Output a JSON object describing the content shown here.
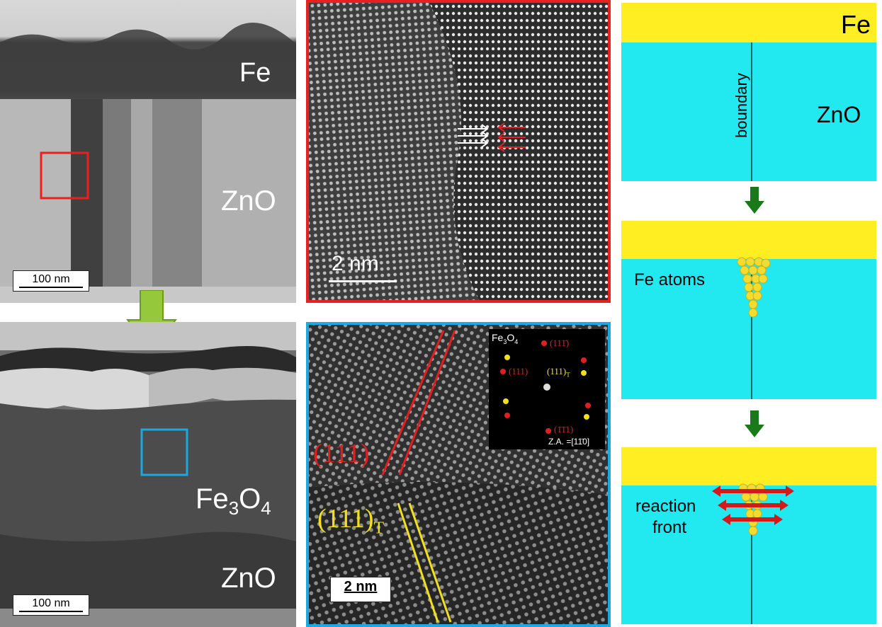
{
  "tem_top": {
    "fe_label": "Fe",
    "zno_label": "ZnO",
    "scale_label": "100 nm"
  },
  "tem_bottom": {
    "fe3o4_base": "Fe",
    "fe3o4_sub1": "3",
    "fe3o4_mid": "O",
    "fe3o4_sub2": "4",
    "zno_label": "ZnO",
    "scale_label": "100 nm"
  },
  "hrtem_top": {
    "scale_label": "2  nm"
  },
  "hrtem_bottom": {
    "plane_fe3o4": "(111)",
    "plane_twin": "(111)",
    "plane_twin_sub": "T",
    "scale_label": "2 nm",
    "inset": {
      "title_base": "Fe",
      "title_sub1": "3",
      "title_mid": "O",
      "title_sub2": "4",
      "spot_top": "(111̄)",
      "spot_left": "(111)",
      "spot_twin": "(111)",
      "spot_twin_sub": "T",
      "spot_bottom": "(1̄1̄1)",
      "zone_axis": "Z.A. =[11̄0]"
    }
  },
  "schematic": {
    "step1": {
      "fe_label": "Fe",
      "zno_label": "ZnO",
      "boundary_label": "boundary"
    },
    "step2": {
      "atoms_label": "Fe atoms"
    },
    "step3": {
      "label_line1": "reaction",
      "label_line2": "front"
    }
  },
  "colors": {
    "fe_layer": "#ffee22",
    "zno_layer": "#22e8f0",
    "box_red": "#e82020",
    "box_blue": "#1ca8e0",
    "arrow_green": "#96c83c",
    "arrow_dark_green": "#1a7a1a",
    "atom_yellow": "#f2dc30",
    "plane_red": "#e02020",
    "plane_yellow": "#f0e020"
  }
}
